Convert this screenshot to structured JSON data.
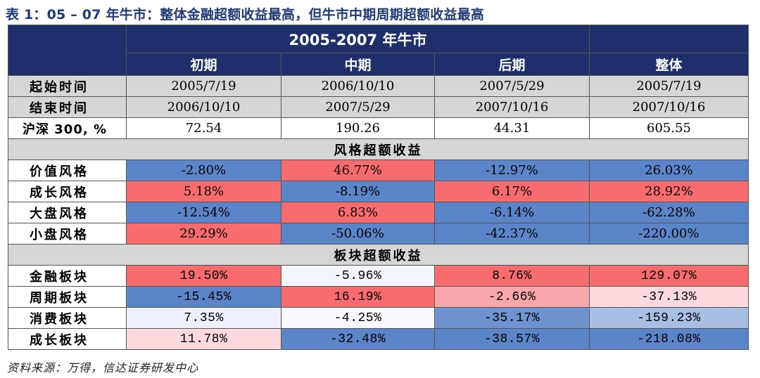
{
  "title": "表 1：05 – 07 年牛市：整体金融超额收益最高，但牛市中期周期超额收益最高",
  "header": {
    "main": "2005-2007 年牛市",
    "phases": [
      "初期",
      "中期",
      "后期",
      "整体"
    ]
  },
  "info_rows": [
    {
      "label": "起始时间",
      "values": [
        "2005/7/19",
        "2006/10/10",
        "2007/5/29",
        "2005/7/19"
      ]
    },
    {
      "label": "结束时间",
      "values": [
        "2006/10/10",
        "2007/5/29",
        "2007/10/16",
        "2007/10/16"
      ]
    },
    {
      "label": "沪深 300, %",
      "values": [
        "72.54",
        "190.26",
        "44.31",
        "605.55"
      ]
    }
  ],
  "style_section": {
    "title": "风格超额收益",
    "rows": [
      {
        "label": "价值风格",
        "values": [
          "-2.80%",
          "46.77%",
          "-12.97%",
          "26.03%"
        ]
      },
      {
        "label": "成长风格",
        "values": [
          "5.18%",
          "-8.19%",
          "6.17%",
          "28.92%"
        ]
      },
      {
        "label": "大盘风格",
        "values": [
          "-12.54%",
          "6.83%",
          "-6.14%",
          "-62.28%"
        ]
      },
      {
        "label": "小盘风格",
        "values": [
          "29.29%",
          "-50.06%",
          "-42.37%",
          "-220.00%"
        ]
      }
    ]
  },
  "sector_section": {
    "title": "板块超额收益",
    "rows": [
      {
        "label": "金融板块",
        "values": [
          "19.50%",
          "-5.96%",
          "8.76%",
          "129.07%"
        ]
      },
      {
        "label": "周期板块",
        "values": [
          "-15.45%",
          "16.19%",
          "-2.66%",
          "-37.13%"
        ]
      },
      {
        "label": "消费板块",
        "values": [
          "7.35%",
          "-4.25%",
          "-35.17%",
          "-159.23%"
        ]
      },
      {
        "label": "成长板块",
        "values": [
          "11.78%",
          "-32.48%",
          "-38.57%",
          "-218.08%"
        ]
      }
    ]
  },
  "cell_colors": {
    "style": [
      [
        "#5b84c9",
        "#f86b6e",
        "#5b84c9",
        "#5b84c9"
      ],
      [
        "#f86b6e",
        "#5b84c9",
        "#f86b6e",
        "#f86b6e"
      ],
      [
        "#5b84c9",
        "#f86b6e",
        "#5b84c9",
        "#5b84c9"
      ],
      [
        "#f86b6e",
        "#5b84c9",
        "#5b84c9",
        "#5b84c9"
      ]
    ],
    "sector": [
      [
        "#f86b6e",
        "#f4f6fd",
        "#f86b6e",
        "#f86b6e"
      ],
      [
        "#5b84c9",
        "#f86b6e",
        "#f9a7aa",
        "#fbd9dc"
      ],
      [
        "#edf1fb",
        "#f8f9fd",
        "#6f93cf",
        "#a7bfe2"
      ],
      [
        "#fbd9dc",
        "#5b84c9",
        "#5b84c9",
        "#5b84c9"
      ]
    ]
  },
  "source": "资料来源：万得，信达证券研发中心"
}
